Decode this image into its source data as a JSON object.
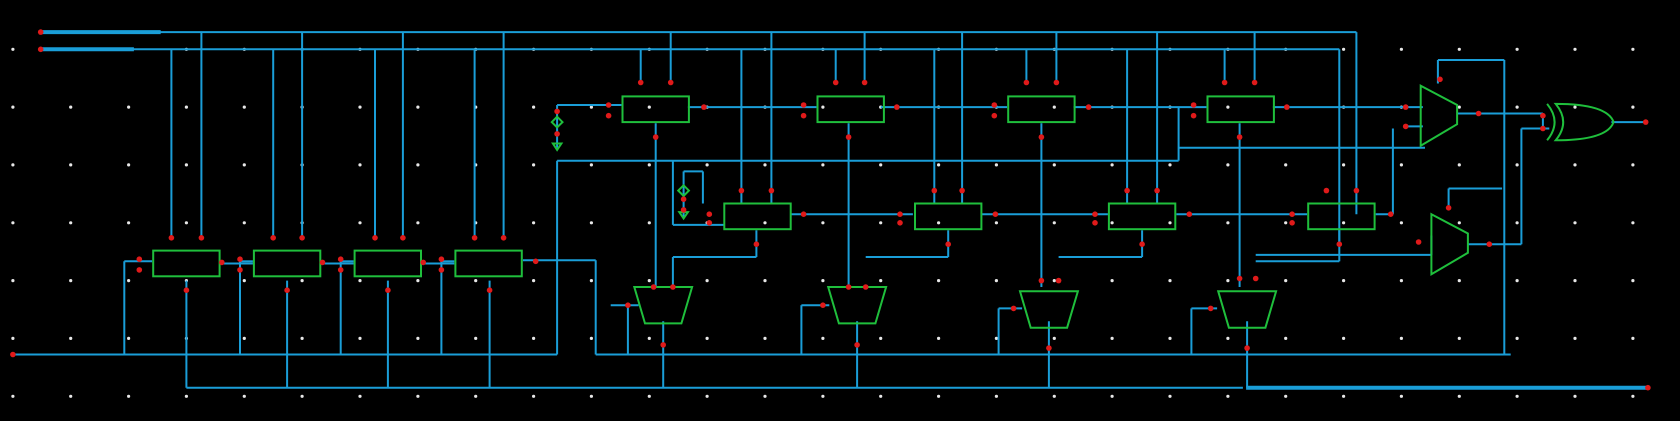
{
  "diagram": {
    "kind": "schematic-editor-canvas",
    "colors": {
      "background": "#000000",
      "wire": "#1a9ed8",
      "cell_outline": "#1fbf3c",
      "pin": "#e01a1a",
      "grid_dot": "#e8e8e8"
    },
    "components": {
      "flip_flops_bottom_row": 4,
      "flip_flops_top_row": 4,
      "flip_flops_middle_row": 4,
      "muxes_small": 4,
      "muxes_right": 2,
      "xor_gates": 1,
      "constant_sources": 2
    },
    "ports": [
      "input-top-1",
      "input-top-2",
      "input-left",
      "output-right",
      "output-bottom-right"
    ]
  }
}
